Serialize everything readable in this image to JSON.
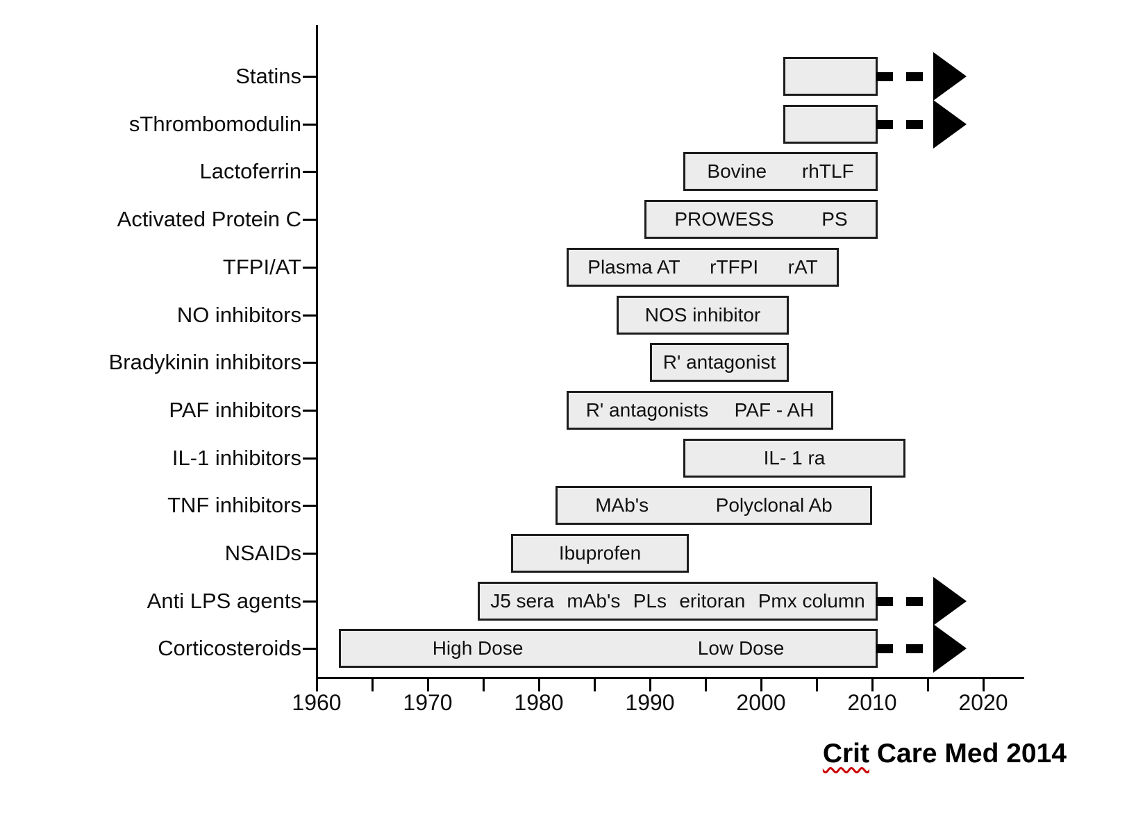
{
  "caption": {
    "word_underlined": "Crit",
    "rest": " Care Med 2014",
    "underline_color": "#cc0000"
  },
  "chart_data": {
    "type": "bar",
    "subtype": "horizontal timeline (Gantt-style year ranges per therapy)",
    "title": "",
    "xlabel": "",
    "ylabel": "",
    "grid": "off",
    "legend": "none",
    "bar_fill": "#ececec",
    "bar_border": "#1c1c1c",
    "arrow_color": "#000000",
    "x_axis": {
      "min": 1960,
      "max": 2020,
      "major_ticks": [
        1960,
        1970,
        1980,
        1990,
        2000,
        2010,
        2020
      ],
      "tick_labels": [
        "1960",
        "1970",
        "1980",
        "1990",
        "2000",
        "2010",
        "2020"
      ],
      "minor_tick_step": 5
    },
    "categories": [
      "Statins",
      "sThrombomodulin",
      "Lactoferrin",
      "Activated Protein C",
      "TFPI/AT",
      "NO inhibitors",
      "Bradykinin inhibitors",
      "PAF inhibitors",
      "IL-1 inhibitors",
      "TNF inhibitors",
      "NSAIDs",
      "Anti LPS agents",
      "Corticosteroids"
    ],
    "rows": [
      {
        "category": "Statins",
        "start": 2002,
        "end": 2010.5,
        "segments": [],
        "arrow": true,
        "arrow_end": 2018
      },
      {
        "category": "sThrombomodulin",
        "start": 2002,
        "end": 2010.5,
        "segments": [],
        "arrow": true,
        "arrow_end": 2018
      },
      {
        "category": "Lactoferrin",
        "start": 1993,
        "end": 2010.5,
        "segments": [
          "Bovine",
          "rhTLF"
        ],
        "arrow": false
      },
      {
        "category": "Activated Protein C",
        "start": 1989.5,
        "end": 2010.5,
        "segments": [
          "PROWESS",
          "PS"
        ],
        "arrow": false
      },
      {
        "category": "TFPI/AT",
        "start": 1982.5,
        "end": 2007,
        "segments": [
          "Plasma AT",
          "rTFPI",
          "rAT"
        ],
        "arrow": false
      },
      {
        "category": "NO inhibitors",
        "start": 1987,
        "end": 2002.5,
        "segments": [
          "NOS inhibitor"
        ],
        "arrow": false
      },
      {
        "category": "Bradykinin inhibitors",
        "start": 1990,
        "end": 2002.5,
        "segments": [
          "R' antagonist"
        ],
        "arrow": false
      },
      {
        "category": "PAF inhibitors",
        "start": 1982.5,
        "end": 2006.5,
        "segments": [
          "R' antagonists",
          "PAF - AH"
        ],
        "arrow": false
      },
      {
        "category": "IL-1 inhibitors",
        "start": 1993,
        "end": 2013,
        "segments": [
          "IL- 1 ra"
        ],
        "arrow": false
      },
      {
        "category": "TNF inhibitors",
        "start": 1981.5,
        "end": 2010,
        "segments": [
          "MAb's",
          "Polyclonal Ab"
        ],
        "arrow": false
      },
      {
        "category": "NSAIDs",
        "start": 1977.5,
        "end": 1993.5,
        "segments": [
          "Ibuprofen"
        ],
        "arrow": false
      },
      {
        "category": "Anti LPS agents",
        "start": 1974.5,
        "end": 2010.5,
        "segments": [
          "J5 sera",
          "mAb's",
          "PLs",
          "eritoran",
          "Pmx column"
        ],
        "arrow": true,
        "arrow_end": 2018
      },
      {
        "category": "Corticosteroids",
        "start": 1962,
        "end": 2010.5,
        "segments": [
          "High Dose",
          "Low Dose"
        ],
        "arrow": true,
        "arrow_end": 2018
      }
    ],
    "annotations": [
      "Crit Care Med 2014"
    ]
  }
}
